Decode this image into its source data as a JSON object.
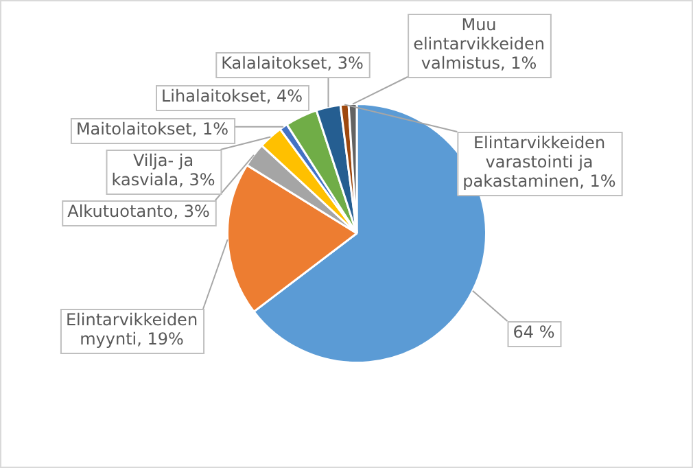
{
  "chart_data": {
    "type": "pie",
    "categories": [
      null,
      "Elintarvikkeiden myynti",
      "Alkutuotanto",
      "Vilja- ja kasviala",
      "Maitolaitokset",
      "Lihalaitokset",
      "Kalalaitokset",
      "Elintarvikkeiden varastointi ja pakastaminen",
      "Muu elintarvikkeiden valmistus"
    ],
    "values": [
      64,
      19,
      3,
      3,
      1,
      4,
      3,
      1,
      1
    ],
    "value_labels": [
      "64 %",
      "19%",
      "3%",
      "3%",
      "1%",
      "4%",
      "3%",
      "1%",
      "1%"
    ],
    "colors": [
      "#5b9bd5",
      "#ed7d31",
      "#a5a5a5",
      "#ffc000",
      "#4472c4",
      "#70ad47",
      "#255e91",
      "#9e480e",
      "#636363"
    ],
    "legend": false
  }
}
